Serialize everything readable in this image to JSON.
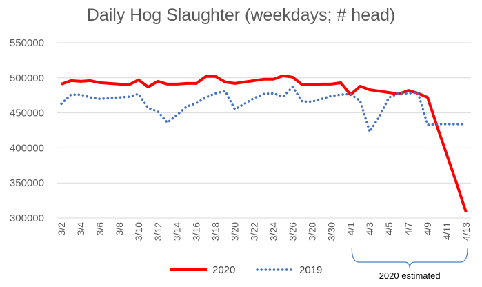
{
  "chart_data": {
    "type": "line",
    "title": "Daily Hog Slaughter (weekdays; # head)",
    "xlabel": "",
    "ylabel": "",
    "ylim": [
      300000,
      550000
    ],
    "yticks": [
      300000,
      350000,
      400000,
      450000,
      500000,
      550000
    ],
    "ytick_labels": [
      "300000",
      "350000",
      "400000",
      "450000",
      "500000",
      "550000"
    ],
    "x": [
      "3/2",
      "3/3",
      "3/4",
      "3/5",
      "3/6",
      "3/7",
      "3/8",
      "3/9",
      "3/10",
      "3/11",
      "3/12",
      "3/13",
      "3/14",
      "3/15",
      "3/16",
      "3/17",
      "3/18",
      "3/19",
      "3/20",
      "3/21",
      "3/22",
      "3/23",
      "3/24",
      "3/25",
      "3/26",
      "3/27",
      "3/28",
      "3/29",
      "3/30",
      "3/31",
      "4/1",
      "4/2",
      "4/3",
      "4/4",
      "4/5",
      "4/6",
      "4/7",
      "4/8",
      "4/9",
      "4/10",
      "4/11",
      "4/12",
      "4/13"
    ],
    "xtick_labels": [
      "3/2",
      "3/4",
      "3/6",
      "3/8",
      "3/10",
      "3/12",
      "3/14",
      "3/16",
      "3/18",
      "3/20",
      "3/22",
      "3/24",
      "3/26",
      "3/28",
      "3/30",
      "4/1",
      "4/3",
      "4/5",
      "4/7",
      "4/9",
      "4/11",
      "4/13"
    ],
    "grid": true,
    "legend": "bottom",
    "series": [
      {
        "name": "2020",
        "color": "#ff0000",
        "style": "solid",
        "values": [
          491000,
          496000,
          495000,
          496000,
          493000,
          492000,
          491000,
          490000,
          497000,
          487000,
          495000,
          491000,
          491000,
          492000,
          492000,
          502000,
          502000,
          494000,
          492000,
          494000,
          496000,
          498000,
          498000,
          503000,
          501000,
          490000,
          490000,
          491000,
          491000,
          493000,
          476000,
          488000,
          483000,
          481000,
          479000,
          477000,
          482000,
          478000,
          472000,
          430000,
          390000,
          350000,
          308000
        ]
      },
      {
        "name": "2019",
        "color": "#4472c4",
        "style": "dotted",
        "values": [
          463000,
          476000,
          476000,
          472000,
          470000,
          471000,
          472000,
          473000,
          477000,
          457000,
          452000,
          436000,
          447000,
          459000,
          464000,
          472000,
          478000,
          481000,
          455000,
          463000,
          471000,
          477000,
          478000,
          473000,
          487000,
          466000,
          466000,
          470000,
          474000,
          476000,
          477000,
          467000,
          423000,
          445000,
          472000,
          478000,
          478000,
          479000,
          433000,
          434000,
          434000,
          434000,
          434000
        ]
      }
    ],
    "annotation": {
      "text": "2020 estimated",
      "from": "4/1",
      "to": "4/13"
    }
  }
}
